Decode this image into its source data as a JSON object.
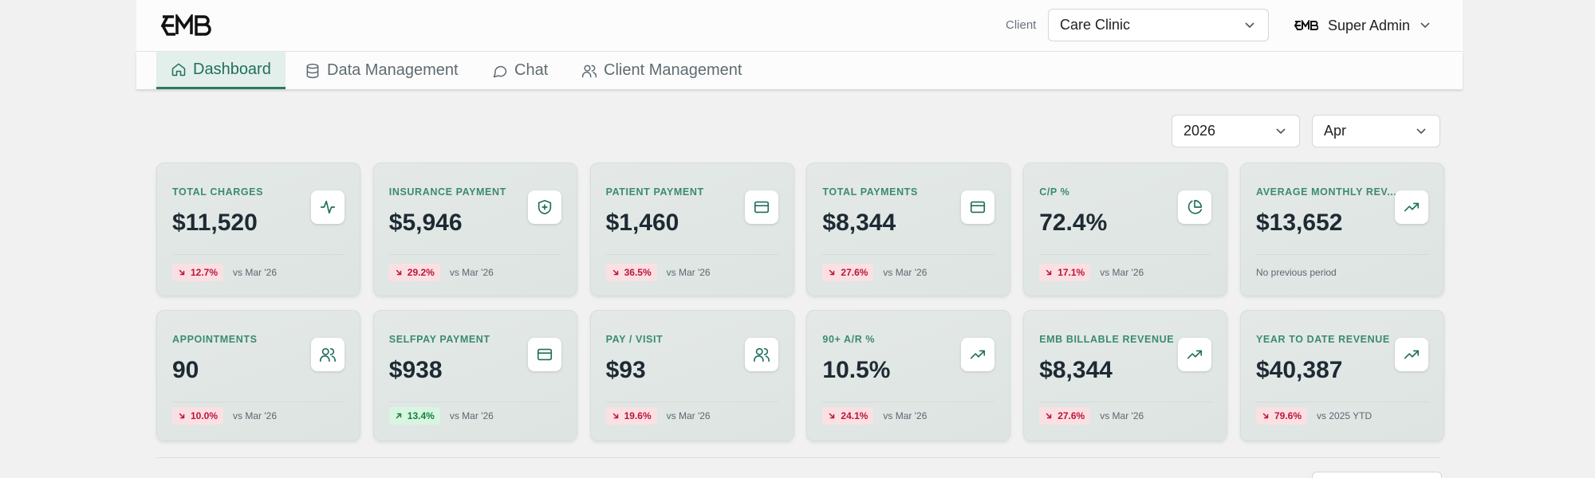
{
  "header": {
    "client_label": "Client",
    "client_value": "Care Clinic",
    "user": "Super Admin"
  },
  "nav": [
    {
      "label": "Dashboard",
      "active": true
    },
    {
      "label": "Data Management",
      "active": false
    },
    {
      "label": "Chat",
      "active": false
    },
    {
      "label": "Client Management",
      "active": false
    }
  ],
  "filters": {
    "year": "2026",
    "month": "Apr"
  },
  "cards": [
    {
      "label": "TOTAL CHARGES",
      "value": "$11,520",
      "change": "12.7%",
      "comparison": "vs Mar '26",
      "trend": "down"
    },
    {
      "label": "INSURANCE PAYMENT",
      "value": "$5,946",
      "change": "29.2%",
      "comparison": "vs Mar '26",
      "trend": "down"
    },
    {
      "label": "PATIENT PAYMENT",
      "value": "$1,460",
      "change": "36.5%",
      "comparison": "vs Mar '26",
      "trend": "down"
    },
    {
      "label": "TOTAL PAYMENTS",
      "value": "$8,344",
      "change": "27.6%",
      "comparison": "vs Mar '26",
      "trend": "down"
    },
    {
      "label": "C/P %",
      "value": "72.4%",
      "change": "17.1%",
      "comparison": "vs Mar '26",
      "trend": "down"
    },
    {
      "label": "AVERAGE MONTHLY REV...",
      "value": "$13,652",
      "comparison": "No previous period"
    },
    {
      "label": "APPOINTMENTS",
      "value": "90",
      "change": "10.0%",
      "comparison": "vs Mar '26",
      "trend": "down"
    },
    {
      "label": "SELFPAY PAYMENT",
      "value": "$938",
      "change": "13.4%",
      "comparison": "vs Mar '26",
      "trend": "up"
    },
    {
      "label": "PAY / VISIT",
      "value": "$93",
      "change": "19.6%",
      "comparison": "vs Mar '26",
      "trend": "down"
    },
    {
      "label": "90+ A/R %",
      "value": "10.5%",
      "change": "24.1%",
      "comparison": "vs Mar '26",
      "trend": "down"
    },
    {
      "label": "EMB BILLABLE REVENUE",
      "value": "$8,344",
      "change": "27.6%",
      "comparison": "vs Mar '26",
      "trend": "down"
    },
    {
      "label": "YEAR TO DATE REVENUE",
      "value": "$40,387",
      "change": "79.6%",
      "comparison": "vs 2025 YTD",
      "trend": "down"
    }
  ]
}
